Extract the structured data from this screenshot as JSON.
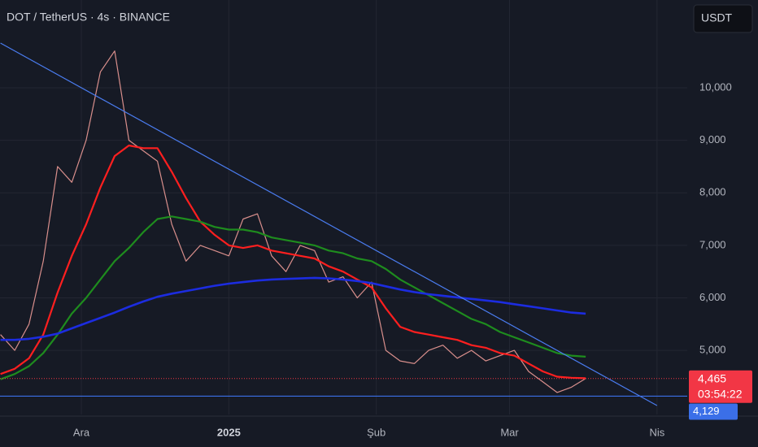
{
  "chart_data": {
    "type": "line",
    "title": "DOT / TetherUS · 4s · BINANCE",
    "currency_button": "USDT",
    "x": [
      -17,
      -14,
      -11,
      -8,
      -5,
      -2,
      1,
      4,
      7,
      10,
      13,
      16,
      19,
      22,
      25,
      28,
      31,
      34,
      37,
      40,
      43,
      46,
      49,
      52,
      55,
      58,
      61,
      64,
      67,
      70,
      73,
      76,
      79,
      82,
      85,
      88,
      91,
      94,
      97,
      100,
      103,
      106
    ],
    "series": [
      {
        "color": "#d98f8c",
        "width": 1.2,
        "values": [
          5300,
          5000,
          5500,
          6700,
          8500,
          8200,
          9000,
          10300,
          10700,
          9000,
          8800,
          8600,
          7400,
          6700,
          7000,
          6900,
          6800,
          7500,
          7600,
          6800,
          6500,
          7000,
          6900,
          6300,
          6400,
          6000,
          6300,
          5000,
          4800,
          4750,
          5000,
          5100,
          4850,
          5000,
          4800,
          4900,
          5000,
          4600,
          4400,
          4200,
          4300,
          4465
        ]
      },
      {
        "color": "#ff1f1f",
        "width": 2.2,
        "values": [
          4550,
          4650,
          4850,
          5300,
          6100,
          6800,
          7400,
          8100,
          8700,
          8900,
          8850,
          8850,
          8400,
          7900,
          7450,
          7200,
          7000,
          6950,
          7000,
          6900,
          6850,
          6800,
          6750,
          6600,
          6500,
          6350,
          6200,
          5800,
          5450,
          5350,
          5300,
          5250,
          5200,
          5100,
          5050,
          4950,
          4900,
          4750,
          4600,
          4500,
          4480,
          4470
        ]
      },
      {
        "color": "#1e8c1e",
        "width": 2.2,
        "values": [
          4450,
          4550,
          4700,
          4950,
          5300,
          5700,
          6000,
          6350,
          6700,
          6950,
          7250,
          7500,
          7550,
          7500,
          7450,
          7350,
          7300,
          7300,
          7250,
          7150,
          7100,
          7050,
          7000,
          6900,
          6850,
          6750,
          6700,
          6550,
          6350,
          6200,
          6050,
          5900,
          5750,
          5600,
          5500,
          5350,
          5250,
          5150,
          5050,
          4950,
          4900,
          4880
        ]
      },
      {
        "color": "#1c2ce0",
        "width": 2.6,
        "values": [
          5200,
          5200,
          5220,
          5260,
          5320,
          5420,
          5520,
          5620,
          5720,
          5830,
          5930,
          6020,
          6080,
          6130,
          6180,
          6230,
          6270,
          6300,
          6330,
          6350,
          6360,
          6370,
          6380,
          6370,
          6350,
          6320,
          6280,
          6220,
          6160,
          6110,
          6070,
          6040,
          6010,
          5980,
          5950,
          5920,
          5880,
          5840,
          5800,
          5760,
          5720,
          5700
        ]
      }
    ],
    "trend_line": {
      "color": "#4a7cf0",
      "x": [
        -17,
        121
      ],
      "y": [
        10850,
        3950
      ]
    },
    "support_line": {
      "color": "#3b6fe8",
      "value": 4129,
      "label": "4,129"
    },
    "last_price": {
      "color": "#f23645",
      "value": 4465,
      "label": "4,465",
      "countdown": "03:54:22"
    },
    "xlim": [
      -17.1,
      127.35
    ],
    "ylim": [
      3780,
      11670
    ],
    "xticks": [
      {
        "value": 0,
        "label": "Ara"
      },
      {
        "value": 31,
        "label": "2025"
      },
      {
        "value": 62,
        "label": "Şub"
      },
      {
        "value": 90,
        "label": "Mar"
      },
      {
        "value": 121,
        "label": "Nis"
      }
    ],
    "yticks": [
      {
        "value": 5000,
        "label": "5,000"
      },
      {
        "value": 6000,
        "label": "6,000"
      },
      {
        "value": 7000,
        "label": "7,000"
      },
      {
        "value": 8000,
        "label": "8,000"
      },
      {
        "value": 9000,
        "label": "9,000"
      },
      {
        "value": 10000,
        "label": "10,000"
      }
    ],
    "grid": true
  }
}
